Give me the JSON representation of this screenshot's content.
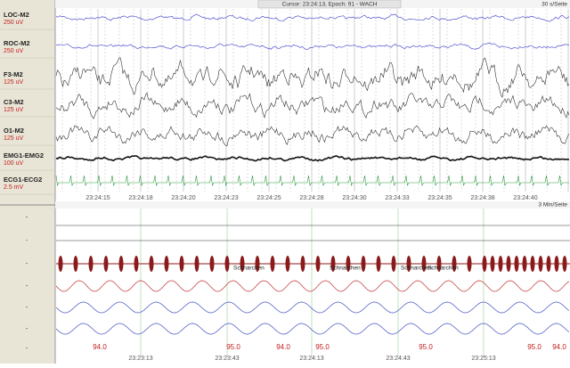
{
  "header": {
    "cursor": "Cursor: 23:24:13, Epoch: 91 - WACH",
    "scale": "30 s/Seite"
  },
  "channels": [
    {
      "name": "LOC-M2",
      "gain": "250 uV"
    },
    {
      "name": "ROC-M2",
      "gain": "250 uV"
    },
    {
      "name": "F3-M2",
      "gain": "125 uV"
    },
    {
      "name": "C3-M2",
      "gain": "125 uV"
    },
    {
      "name": "O1-M2",
      "gain": "125 uV"
    },
    {
      "name": "EMG1-EMG2",
      "gain": "100 uV"
    },
    {
      "name": "ECG1-ECG2",
      "gain": "2.5 mV"
    }
  ],
  "epoch_times": [
    "23:24:15",
    "23:24:18",
    "23:24:20",
    "23:24:23",
    "23:24:25",
    "23:24:28",
    "23:24:30",
    "23:24:33",
    "23:24:35",
    "23:24:38",
    "23:24:40"
  ],
  "overview": {
    "scale": "3 Min/Seite",
    "rows": [
      "-",
      "-",
      "-",
      "-",
      "-",
      "-",
      "-"
    ],
    "annotations": [
      "Schnarchen",
      "Schnarchen",
      "Schnarchen",
      "Schnarchen"
    ],
    "spo2": [
      "94.0",
      "95.0",
      "94.0",
      "95.0",
      "95.0",
      "95.0",
      "94.0"
    ],
    "times": [
      "23:23:13",
      "23:23:43",
      "23:24:13",
      "23:24:43",
      "23:25:13"
    ]
  }
}
